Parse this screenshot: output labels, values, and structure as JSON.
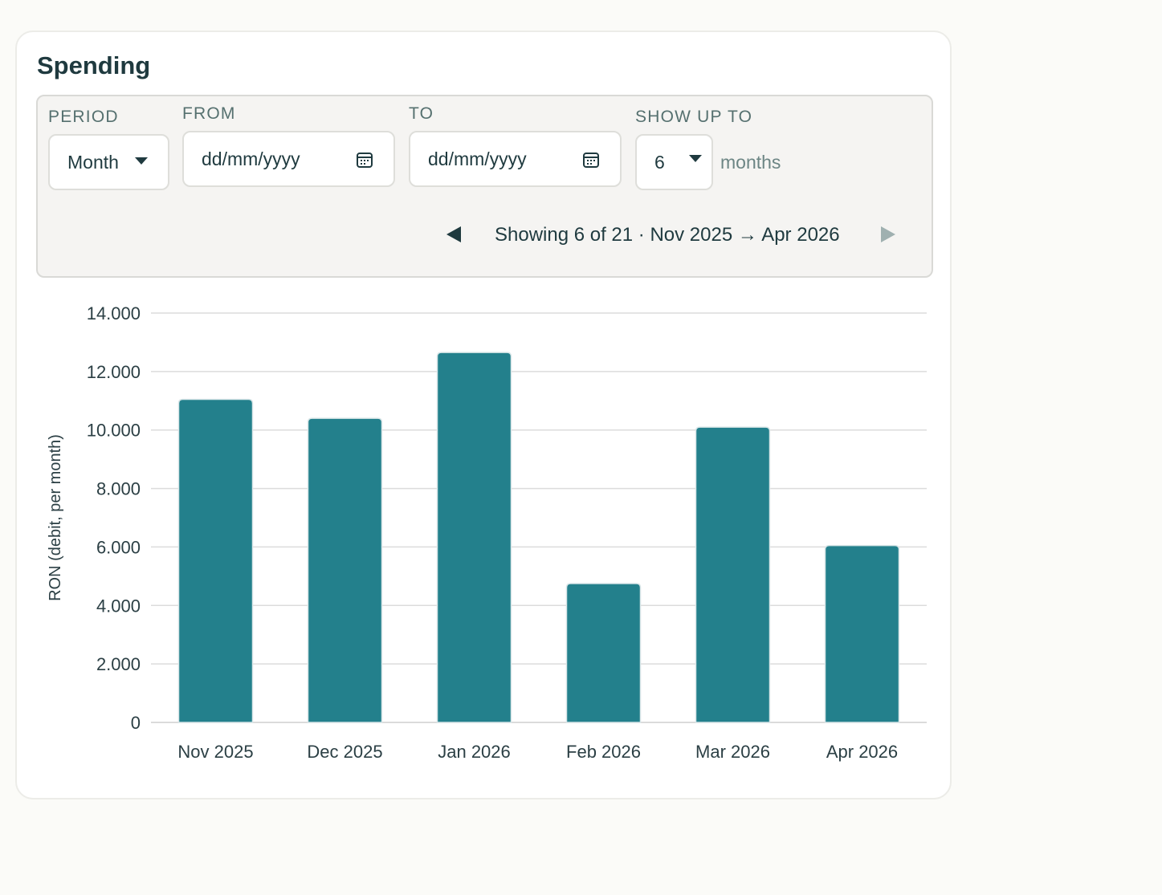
{
  "card": {
    "title": "Spending"
  },
  "controls": {
    "period": {
      "label": "PERIOD",
      "value": "Month"
    },
    "from": {
      "label": "FROM",
      "placeholder": "dd/mm/yyyy"
    },
    "to": {
      "label": "TO",
      "placeholder": "dd/mm/yyyy"
    },
    "show_up_to": {
      "label": "SHOW UP TO",
      "value": "6",
      "unit": "months"
    },
    "pager": {
      "text": "Showing 6 of 21 · Nov 2025 → Apr 2026"
    }
  },
  "colors": {
    "bar": "#23808c",
    "grid": "#dcdcdc"
  },
  "chart_data": {
    "type": "bar",
    "title": "",
    "xlabel": "",
    "ylabel": "RON (debit, per month)",
    "categories": [
      "Nov 2025",
      "Dec 2025",
      "Jan 2026",
      "Feb 2026",
      "Mar 2026",
      "Apr 2026"
    ],
    "values": [
      11050,
      10400,
      12650,
      4750,
      10100,
      6050
    ],
    "ylim": [
      0,
      14000
    ],
    "yticks": [
      0,
      2000,
      4000,
      6000,
      8000,
      10000,
      12000,
      14000
    ],
    "ytick_labels": [
      "0",
      "2.000",
      "4.000",
      "6.000",
      "8.000",
      "10.000",
      "12.000",
      "14.000"
    ],
    "grid": true,
    "legend": "none"
  }
}
